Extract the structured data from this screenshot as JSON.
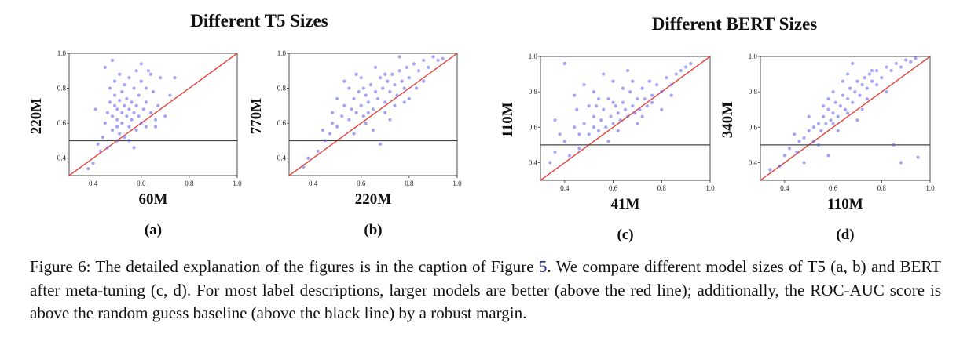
{
  "figure": {
    "groups": [
      {
        "title": "Different T5 Sizes"
      },
      {
        "title": "Different BERT Sizes"
      }
    ]
  },
  "caption": {
    "before": "Figure 6: The detailed explanation of the figures is in the caption of Figure ",
    "ref": "5",
    "after": ". We compare different model sizes of T5 (a, b) and BERT after meta-tuning (c, d). For most label descriptions, larger models are better (above the red line); additionally, the ROC-AUC score is above the random guess baseline (above the black line) by a robust margin."
  },
  "colors": {
    "points": "#5b5bf0",
    "diagonal": "#e8413a",
    "baseline": "#444444"
  },
  "chart_data": [
    {
      "type": "scatter",
      "panel": "(a)",
      "xlabel": "60M",
      "ylabel": "220M",
      "xlim": [
        0.3,
        1.0
      ],
      "ylim": [
        0.3,
        1.0
      ],
      "xticks": [
        "0.4",
        "0.6",
        "0.8",
        "1.0"
      ],
      "yticks": [
        "0.4",
        "0.6",
        "0.8",
        "1.0"
      ],
      "reference_lines": {
        "diagonal": "y = x",
        "horizontal_y": 0.5
      },
      "points": [
        [
          0.38,
          0.34
        ],
        [
          0.4,
          0.37
        ],
        [
          0.42,
          0.48
        ],
        [
          0.44,
          0.52
        ],
        [
          0.45,
          0.6
        ],
        [
          0.46,
          0.66
        ],
        [
          0.47,
          0.72
        ],
        [
          0.47,
          0.8
        ],
        [
          0.48,
          0.56
        ],
        [
          0.48,
          0.64
        ],
        [
          0.49,
          0.7
        ],
        [
          0.49,
          0.76
        ],
        [
          0.5,
          0.5
        ],
        [
          0.5,
          0.58
        ],
        [
          0.5,
          0.62
        ],
        [
          0.5,
          0.68
        ],
        [
          0.51,
          0.73
        ],
        [
          0.51,
          0.54
        ],
        [
          0.52,
          0.66
        ],
        [
          0.52,
          0.6
        ],
        [
          0.52,
          0.78
        ],
        [
          0.53,
          0.7
        ],
        [
          0.53,
          0.52
        ],
        [
          0.54,
          0.64
        ],
        [
          0.54,
          0.74
        ],
        [
          0.55,
          0.58
        ],
        [
          0.55,
          0.68
        ],
        [
          0.55,
          0.86
        ],
        [
          0.56,
          0.62
        ],
        [
          0.56,
          0.72
        ],
        [
          0.57,
          0.66
        ],
        [
          0.57,
          0.8
        ],
        [
          0.58,
          0.56
        ],
        [
          0.58,
          0.7
        ],
        [
          0.59,
          0.64
        ],
        [
          0.59,
          0.76
        ],
        [
          0.6,
          0.6
        ],
        [
          0.6,
          0.84
        ],
        [
          0.61,
          0.68
        ],
        [
          0.62,
          0.72
        ],
        [
          0.62,
          0.58
        ],
        [
          0.63,
          0.9
        ],
        [
          0.64,
          0.66
        ],
        [
          0.65,
          0.78
        ],
        [
          0.66,
          0.62
        ],
        [
          0.67,
          0.7
        ],
        [
          0.68,
          0.86
        ],
        [
          0.7,
          0.64
        ],
        [
          0.72,
          0.76
        ],
        [
          0.74,
          0.86
        ],
        [
          0.45,
          0.92
        ],
        [
          0.48,
          0.96
        ],
        [
          0.43,
          0.44
        ],
        [
          0.51,
          0.88
        ],
        [
          0.55,
          0.5
        ],
        [
          0.6,
          0.94
        ],
        [
          0.66,
          0.58
        ],
        [
          0.41,
          0.68
        ],
        [
          0.53,
          0.82
        ],
        [
          0.57,
          0.46
        ],
        [
          0.46,
          0.46
        ],
        [
          0.49,
          0.84
        ],
        [
          0.58,
          0.9
        ],
        [
          0.62,
          0.8
        ],
        [
          0.64,
          0.88
        ]
      ]
    },
    {
      "type": "scatter",
      "panel": "(b)",
      "xlabel": "220M",
      "ylabel": "770M",
      "xlim": [
        0.3,
        1.0
      ],
      "ylim": [
        0.3,
        1.0
      ],
      "xticks": [
        "0.4",
        "0.6",
        "0.8",
        "1.0"
      ],
      "yticks": [
        "0.4",
        "0.6",
        "0.8",
        "1.0"
      ],
      "reference_lines": {
        "diagonal": "y = x",
        "horizontal_y": 0.5
      },
      "points": [
        [
          0.36,
          0.35
        ],
        [
          0.38,
          0.4
        ],
        [
          0.42,
          0.44
        ],
        [
          0.45,
          0.5
        ],
        [
          0.47,
          0.54
        ],
        [
          0.48,
          0.6
        ],
        [
          0.5,
          0.58
        ],
        [
          0.52,
          0.64
        ],
        [
          0.53,
          0.7
        ],
        [
          0.55,
          0.62
        ],
        [
          0.56,
          0.68
        ],
        [
          0.57,
          0.74
        ],
        [
          0.58,
          0.66
        ],
        [
          0.59,
          0.78
        ],
        [
          0.6,
          0.7
        ],
        [
          0.61,
          0.64
        ],
        [
          0.62,
          0.76
        ],
        [
          0.63,
          0.72
        ],
        [
          0.64,
          0.82
        ],
        [
          0.65,
          0.68
        ],
        [
          0.66,
          0.78
        ],
        [
          0.67,
          0.74
        ],
        [
          0.68,
          0.86
        ],
        [
          0.69,
          0.8
        ],
        [
          0.7,
          0.72
        ],
        [
          0.71,
          0.84
        ],
        [
          0.72,
          0.78
        ],
        [
          0.73,
          0.88
        ],
        [
          0.74,
          0.82
        ],
        [
          0.75,
          0.76
        ],
        [
          0.76,
          0.9
        ],
        [
          0.77,
          0.84
        ],
        [
          0.78,
          0.8
        ],
        [
          0.79,
          0.92
        ],
        [
          0.8,
          0.86
        ],
        [
          0.82,
          0.94
        ],
        [
          0.84,
          0.9
        ],
        [
          0.86,
          0.96
        ],
        [
          0.88,
          0.92
        ],
        [
          0.9,
          0.98
        ],
        [
          0.92,
          0.96
        ],
        [
          0.94,
          0.97
        ],
        [
          0.55,
          0.8
        ],
        [
          0.6,
          0.86
        ],
        [
          0.5,
          0.74
        ],
        [
          0.62,
          0.6
        ],
        [
          0.7,
          0.66
        ],
        [
          0.58,
          0.88
        ],
        [
          0.66,
          0.92
        ],
        [
          0.74,
          0.7
        ],
        [
          0.8,
          0.74
        ],
        [
          0.44,
          0.56
        ],
        [
          0.65,
          0.56
        ],
        [
          0.72,
          0.62
        ],
        [
          0.83,
          0.8
        ],
        [
          0.68,
          0.48
        ],
        [
          0.57,
          0.54
        ],
        [
          0.76,
          0.98
        ],
        [
          0.53,
          0.84
        ],
        [
          0.63,
          0.66
        ],
        [
          0.86,
          0.84
        ],
        [
          0.78,
          0.72
        ],
        [
          0.61,
          0.8
        ],
        [
          0.7,
          0.88
        ],
        [
          0.48,
          0.66
        ]
      ]
    },
    {
      "type": "scatter",
      "panel": "(c)",
      "xlabel": "41M",
      "ylabel": "110M",
      "xlim": [
        0.3,
        1.0
      ],
      "ylim": [
        0.3,
        1.0
      ],
      "xticks": [
        "0.4",
        "0.6",
        "0.8",
        "1.0"
      ],
      "yticks": [
        "0.4",
        "0.6",
        "0.8",
        "1.0"
      ],
      "reference_lines": {
        "diagonal": "y = x",
        "horizontal_y": 0.5
      },
      "points": [
        [
          0.34,
          0.4
        ],
        [
          0.36,
          0.64
        ],
        [
          0.38,
          0.56
        ],
        [
          0.4,
          0.52
        ],
        [
          0.42,
          0.44
        ],
        [
          0.44,
          0.6
        ],
        [
          0.45,
          0.7
        ],
        [
          0.46,
          0.48
        ],
        [
          0.48,
          0.62
        ],
        [
          0.5,
          0.56
        ],
        [
          0.52,
          0.66
        ],
        [
          0.53,
          0.72
        ],
        [
          0.54,
          0.58
        ],
        [
          0.55,
          0.64
        ],
        [
          0.56,
          0.7
        ],
        [
          0.57,
          0.6
        ],
        [
          0.58,
          0.76
        ],
        [
          0.59,
          0.66
        ],
        [
          0.6,
          0.62
        ],
        [
          0.61,
          0.72
        ],
        [
          0.62,
          0.68
        ],
        [
          0.63,
          0.64
        ],
        [
          0.64,
          0.74
        ],
        [
          0.65,
          0.7
        ],
        [
          0.66,
          0.66
        ],
        [
          0.67,
          0.8
        ],
        [
          0.68,
          0.72
        ],
        [
          0.69,
          0.68
        ],
        [
          0.7,
          0.76
        ],
        [
          0.71,
          0.7
        ],
        [
          0.72,
          0.82
        ],
        [
          0.73,
          0.76
        ],
        [
          0.74,
          0.72
        ],
        [
          0.75,
          0.86
        ],
        [
          0.76,
          0.78
        ],
        [
          0.78,
          0.84
        ],
        [
          0.8,
          0.8
        ],
        [
          0.82,
          0.88
        ],
        [
          0.84,
          0.84
        ],
        [
          0.86,
          0.9
        ],
        [
          0.88,
          0.92
        ],
        [
          0.9,
          0.94
        ],
        [
          0.92,
          0.96
        ],
        [
          0.4,
          0.96
        ],
        [
          0.48,
          0.84
        ],
        [
          0.52,
          0.8
        ],
        [
          0.6,
          0.86
        ],
        [
          0.56,
          0.9
        ],
        [
          0.66,
          0.92
        ],
        [
          0.44,
          0.78
        ],
        [
          0.5,
          0.72
        ],
        [
          0.62,
          0.58
        ],
        [
          0.7,
          0.62
        ],
        [
          0.58,
          0.52
        ],
        [
          0.8,
          0.7
        ],
        [
          0.36,
          0.46
        ],
        [
          0.54,
          0.76
        ],
        [
          0.64,
          0.82
        ],
        [
          0.72,
          0.66
        ],
        [
          0.46,
          0.56
        ],
        [
          0.6,
          0.74
        ],
        [
          0.76,
          0.74
        ],
        [
          0.68,
          0.86
        ],
        [
          0.84,
          0.78
        ],
        [
          0.52,
          0.6
        ]
      ]
    },
    {
      "type": "scatter",
      "panel": "(d)",
      "xlabel": "110M",
      "ylabel": "340M",
      "xlim": [
        0.3,
        1.0
      ],
      "ylim": [
        0.3,
        1.0
      ],
      "xticks": [
        "0.4",
        "0.6",
        "0.8",
        "1.0"
      ],
      "yticks": [
        "0.4",
        "0.6",
        "0.8",
        "1.0"
      ],
      "reference_lines": {
        "diagonal": "y = x",
        "horizontal_y": 0.5
      },
      "points": [
        [
          0.34,
          0.36
        ],
        [
          0.38,
          0.38
        ],
        [
          0.4,
          0.44
        ],
        [
          0.42,
          0.48
        ],
        [
          0.45,
          0.46
        ],
        [
          0.48,
          0.54
        ],
        [
          0.5,
          0.58
        ],
        [
          0.52,
          0.52
        ],
        [
          0.54,
          0.62
        ],
        [
          0.55,
          0.58
        ],
        [
          0.56,
          0.66
        ],
        [
          0.57,
          0.62
        ],
        [
          0.58,
          0.7
        ],
        [
          0.59,
          0.64
        ],
        [
          0.6,
          0.68
        ],
        [
          0.61,
          0.74
        ],
        [
          0.62,
          0.66
        ],
        [
          0.63,
          0.72
        ],
        [
          0.64,
          0.78
        ],
        [
          0.65,
          0.7
        ],
        [
          0.66,
          0.76
        ],
        [
          0.67,
          0.82
        ],
        [
          0.68,
          0.74
        ],
        [
          0.69,
          0.8
        ],
        [
          0.7,
          0.86
        ],
        [
          0.71,
          0.78
        ],
        [
          0.72,
          0.84
        ],
        [
          0.73,
          0.88
        ],
        [
          0.74,
          0.82
        ],
        [
          0.75,
          0.9
        ],
        [
          0.76,
          0.86
        ],
        [
          0.78,
          0.92
        ],
        [
          0.8,
          0.88
        ],
        [
          0.82,
          0.94
        ],
        [
          0.84,
          0.92
        ],
        [
          0.86,
          0.96
        ],
        [
          0.88,
          0.94
        ],
        [
          0.9,
          0.98
        ],
        [
          0.92,
          0.97
        ],
        [
          0.94,
          0.99
        ],
        [
          0.5,
          0.66
        ],
        [
          0.56,
          0.72
        ],
        [
          0.6,
          0.8
        ],
        [
          0.64,
          0.86
        ],
        [
          0.68,
          0.96
        ],
        [
          0.54,
          0.5
        ],
        [
          0.62,
          0.58
        ],
        [
          0.7,
          0.64
        ],
        [
          0.58,
          0.44
        ],
        [
          0.46,
          0.52
        ],
        [
          0.85,
          0.5
        ],
        [
          0.88,
          0.4
        ],
        [
          0.95,
          0.43
        ],
        [
          0.66,
          0.9
        ],
        [
          0.74,
          0.76
        ],
        [
          0.52,
          0.6
        ],
        [
          0.6,
          0.62
        ],
        [
          0.72,
          0.7
        ],
        [
          0.78,
          0.84
        ],
        [
          0.82,
          0.8
        ],
        [
          0.48,
          0.4
        ],
        [
          0.44,
          0.56
        ],
        [
          0.58,
          0.76
        ],
        [
          0.66,
          0.68
        ],
        [
          0.76,
          0.92
        ]
      ]
    }
  ]
}
